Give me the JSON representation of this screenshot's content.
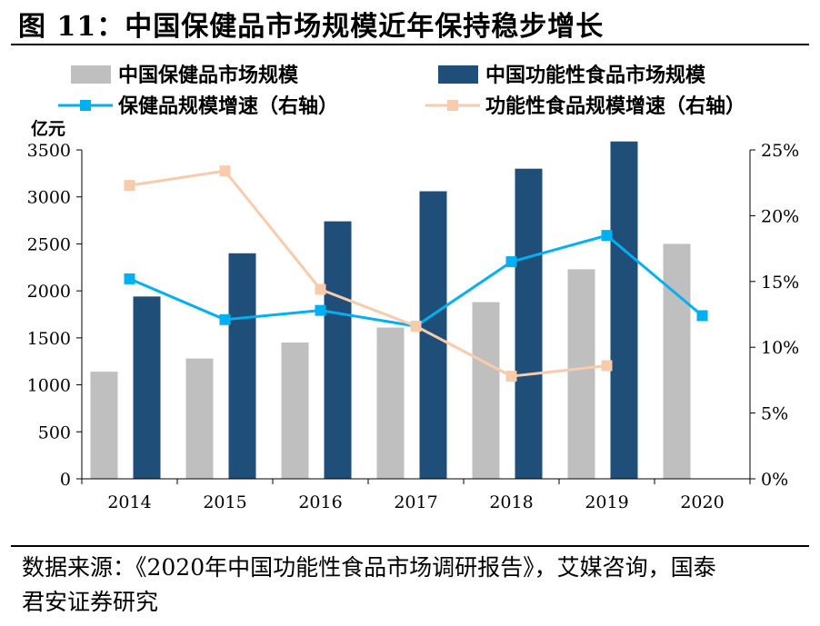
{
  "figure": {
    "title": "图 11：中国保健品市场规模近年保持稳步增长",
    "source": "数据来源：《2020年中国功能性食品市场调研报告》，艾媒咨询，国泰君安证券研究"
  },
  "chart_data": {
    "type": "bar",
    "categories": [
      "2014",
      "2015",
      "2016",
      "2017",
      "2018",
      "2019",
      "2020"
    ],
    "ylabel": "亿元",
    "ylim": [
      0,
      3500
    ],
    "yticks": [
      "0",
      "500",
      "1000",
      "1500",
      "2000",
      "2500",
      "3000",
      "3500"
    ],
    "y2lim": [
      0,
      25
    ],
    "y2ticks": [
      "0%",
      "5%",
      "10%",
      "15%",
      "20%",
      "25%"
    ],
    "grid": false,
    "legend_position": "top",
    "bar_series": [
      {
        "name": "中国保健品市场规模",
        "color": "#bfbfbf",
        "values": [
          1140,
          1280,
          1450,
          1610,
          1880,
          2230,
          2500
        ]
      },
      {
        "name": "中国功能性食品市场规模",
        "color": "#1f4e79",
        "values": [
          1940,
          2400,
          2740,
          3060,
          3300,
          3590,
          null
        ]
      }
    ],
    "line_series": [
      {
        "name": "保健品规模增速（右轴）",
        "color": "#00b0f0",
        "marker": "square",
        "values": [
          15.2,
          12.1,
          12.8,
          11.6,
          16.5,
          18.5,
          12.4
        ]
      },
      {
        "name": "功能性食品规模增速（右轴）",
        "color": "#f8cbad",
        "marker": "square",
        "values": [
          22.3,
          23.4,
          14.4,
          11.6,
          7.8,
          8.6,
          null
        ]
      }
    ]
  }
}
